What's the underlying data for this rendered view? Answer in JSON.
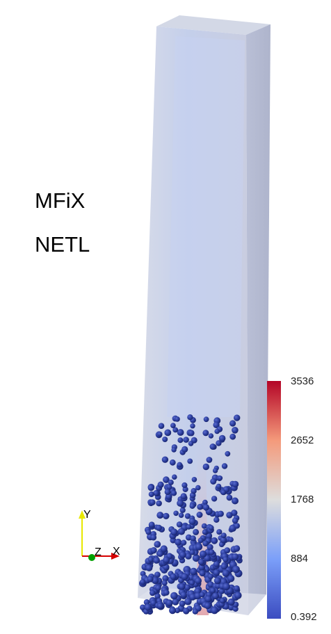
{
  "labels": {
    "line1": "MFiX",
    "line2": "NETL"
  },
  "colorbar": {
    "max_label": "3536",
    "tick_2": "2652",
    "tick_3": "1768",
    "tick_4": "884",
    "min_label": "0.392",
    "color_low": "#3b4cc0",
    "color_mid": "#dddddd",
    "color_high": "#b40426"
  },
  "axes": {
    "x": "X",
    "y": "Y",
    "z": "Z"
  },
  "colors": {
    "particle": "#2c3e9e",
    "column_fill": "#c9d2ea",
    "axis_x": "#d60000",
    "axis_y": "#e8e800",
    "axis_z": "#00a000"
  }
}
